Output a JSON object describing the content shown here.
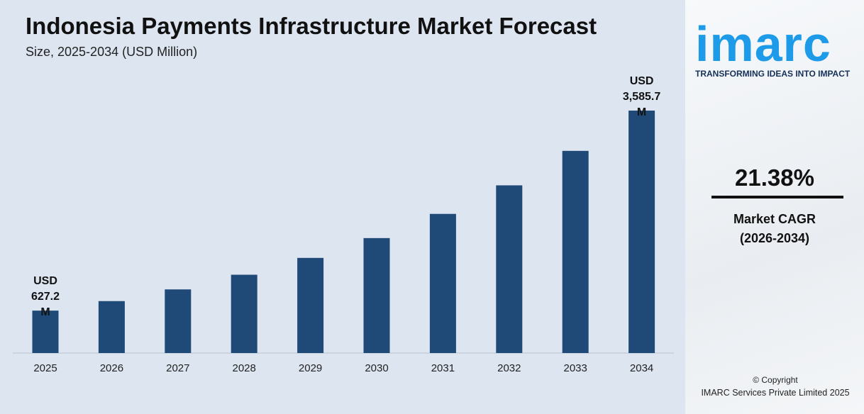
{
  "chart_data": {
    "type": "bar",
    "title": "Indonesia Payments Infrastructure Market Forecast",
    "subtitle": "Size, 2025-2034 (USD Million)",
    "categories": [
      "2025",
      "2026",
      "2027",
      "2028",
      "2029",
      "2030",
      "2031",
      "2032",
      "2033",
      "2034"
    ],
    "values": [
      627.2,
      768,
      941,
      1158,
      1407,
      1700,
      2058,
      2480,
      2990,
      3585.7
    ],
    "value_labels": [
      "USD 627.2 M",
      null,
      null,
      null,
      null,
      null,
      null,
      null,
      null,
      "USD 3,585.7 M"
    ],
    "color": "#1f4a78"
  },
  "side_panel": {
    "logo": "imarc",
    "tagline": "TRANSFORMING IDEAS INTO IMPACT",
    "cagr": "21.38%",
    "cagr_label": "Market CAGR (2026-2034)",
    "copyright": "© Copyright",
    "company": "IMARC Services Private Limited 2025"
  }
}
